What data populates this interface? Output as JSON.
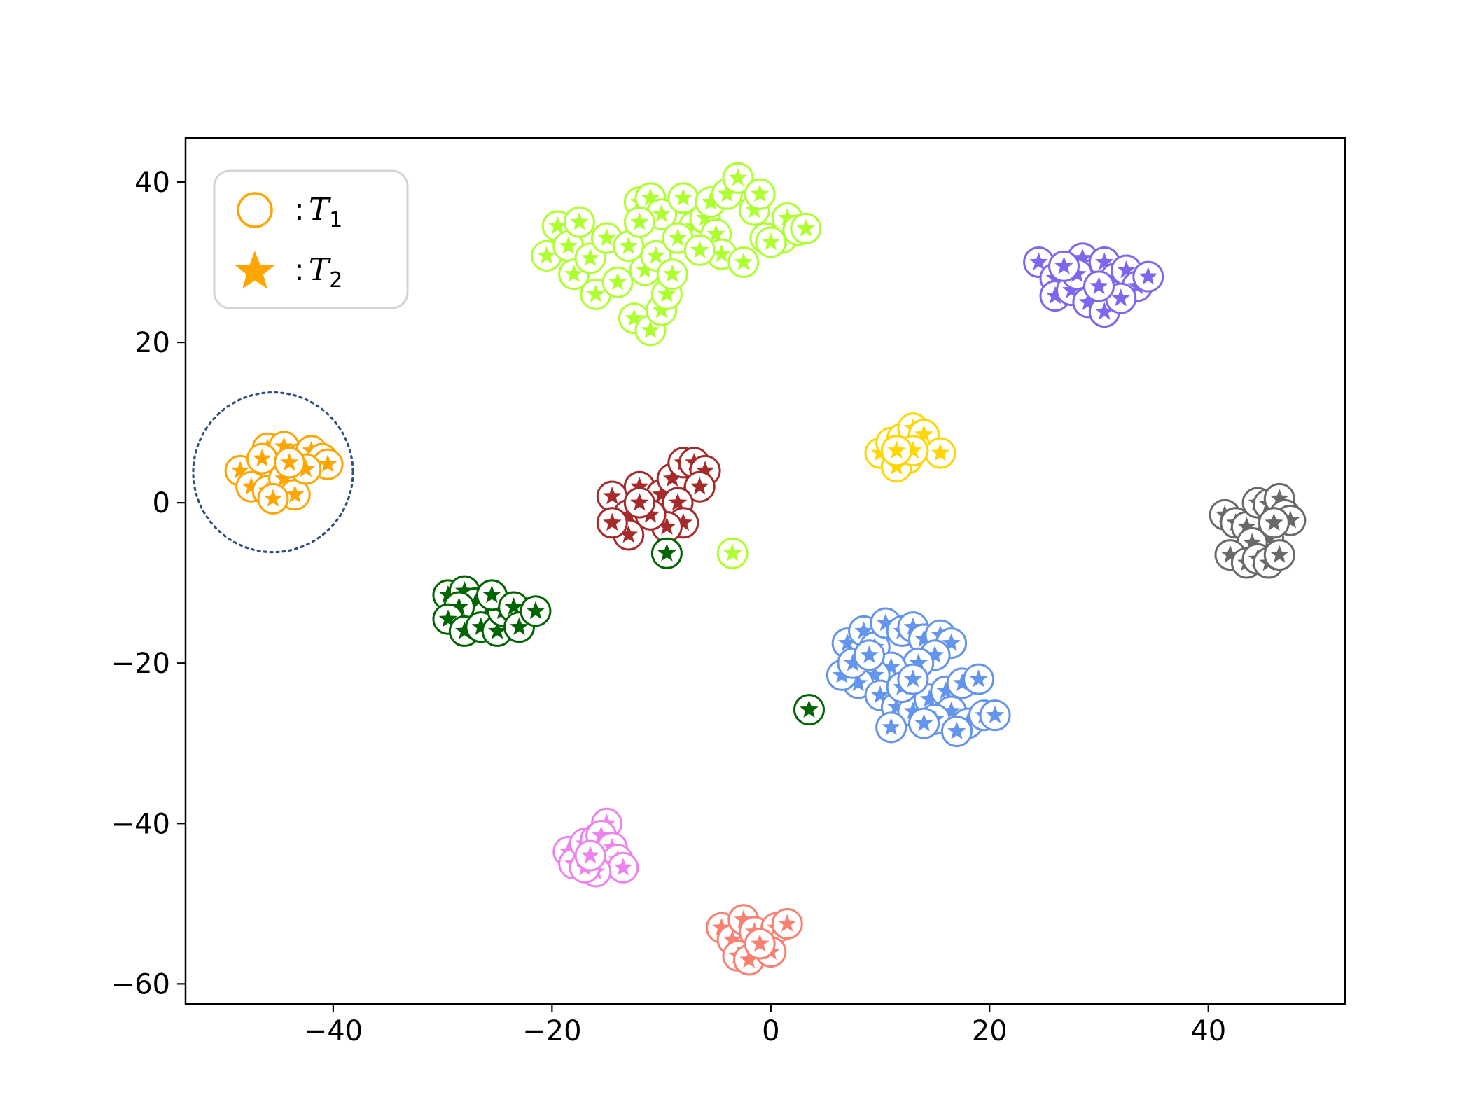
{
  "chart_data": {
    "type": "scatter",
    "title": "",
    "xlabel": "",
    "ylabel": "",
    "xlim": [
      -53.5,
      52.5
    ],
    "ylim": [
      -62.5,
      45.5
    ],
    "x_ticks": [
      -40,
      -20,
      0,
      20,
      40
    ],
    "y_ticks": [
      -60,
      -40,
      -20,
      0,
      20,
      40
    ],
    "x_tick_labels": [
      "−40",
      "−20",
      "0",
      "20",
      "40"
    ],
    "y_tick_labels": [
      "−60",
      "−40",
      "−20",
      "0",
      "20",
      "40"
    ],
    "grid": false,
    "legend": {
      "placement": "top-left",
      "entries": [
        {
          "marker": "circle-open",
          "prefix": ":",
          "symbol": "T",
          "subscript": "1"
        },
        {
          "marker": "star-filled",
          "prefix": ":",
          "symbol": "T",
          "subscript": "2"
        }
      ],
      "marker_color": "#FFA500"
    },
    "highlight": {
      "shape": "dotted-circle",
      "center": [
        -45.5,
        3.8
      ],
      "radius": 7.3,
      "color": "#2F4F7F"
    },
    "clusters": [
      {
        "color": "#FFA500",
        "points": [
          [
            -47,
            4.2
          ],
          [
            -46,
            6.8
          ],
          [
            -44.5,
            7
          ],
          [
            -43,
            5.5
          ],
          [
            -42,
            6.5
          ],
          [
            -41,
            5.5
          ],
          [
            -40.5,
            4.8
          ],
          [
            -48.5,
            4
          ],
          [
            -47.5,
            2
          ],
          [
            -46,
            1.5
          ],
          [
            -44.5,
            3
          ],
          [
            -43.5,
            1
          ],
          [
            -45.5,
            0.5
          ],
          [
            -42.5,
            4.2
          ],
          [
            -46.5,
            5.5
          ],
          [
            -44,
            5
          ]
        ]
      },
      {
        "color": "#ADFF2F",
        "points": [
          [
            -20.5,
            30.8
          ],
          [
            -19.5,
            34.5
          ],
          [
            -18.5,
            32
          ],
          [
            -17.5,
            35
          ],
          [
            -18,
            28.5
          ],
          [
            -16.5,
            30.5
          ],
          [
            -15,
            33
          ],
          [
            -16,
            26
          ],
          [
            -14,
            27.5
          ],
          [
            -13,
            32
          ],
          [
            -12,
            37.5
          ],
          [
            -11,
            38
          ],
          [
            -10,
            36
          ],
          [
            -11.5,
            29
          ],
          [
            -10.5,
            30.8
          ],
          [
            -12.5,
            23
          ],
          [
            -11,
            21.5
          ],
          [
            -10,
            24
          ],
          [
            -9.5,
            26
          ],
          [
            -9,
            28.5
          ],
          [
            -8,
            38
          ],
          [
            -7,
            34.5
          ],
          [
            -6,
            35.5
          ],
          [
            -5,
            33.5
          ],
          [
            -5.5,
            37.5
          ],
          [
            -4,
            38.5
          ],
          [
            -3,
            40.5
          ],
          [
            -4.5,
            31
          ],
          [
            -2.5,
            30
          ],
          [
            -1.5,
            36.5
          ],
          [
            -0.5,
            33
          ],
          [
            1,
            33
          ],
          [
            1.5,
            35.5
          ],
          [
            -1,
            38.5
          ],
          [
            2.5,
            34
          ],
          [
            -12,
            35
          ],
          [
            -8.5,
            33
          ],
          [
            -6.5,
            31.5
          ],
          [
            3.2,
            34.2
          ],
          [
            0,
            32.5
          ]
        ]
      },
      {
        "color": "#7B68EE",
        "points": [
          [
            24.5,
            30
          ],
          [
            26,
            28
          ],
          [
            27.5,
            27
          ],
          [
            28.5,
            30.5
          ],
          [
            29.5,
            28.5
          ],
          [
            30.5,
            30
          ],
          [
            31.5,
            28
          ],
          [
            32.5,
            29
          ],
          [
            33.5,
            27
          ],
          [
            34.5,
            28.2
          ],
          [
            26,
            25.8
          ],
          [
            27.5,
            26.5
          ],
          [
            29,
            25
          ],
          [
            30.5,
            23.8
          ],
          [
            32,
            25.5
          ],
          [
            28,
            28.5
          ],
          [
            30,
            27
          ],
          [
            26.8,
            29.5
          ]
        ]
      },
      {
        "color": "#FFD700",
        "points": [
          [
            10,
            6.2
          ],
          [
            11,
            7.5
          ],
          [
            12,
            8
          ],
          [
            13,
            9.3
          ],
          [
            14,
            8.5
          ],
          [
            12.5,
            5.5
          ],
          [
            11.5,
            4.5
          ],
          [
            15.5,
            6.2
          ],
          [
            13,
            6.5
          ],
          [
            11.5,
            6.5
          ]
        ]
      },
      {
        "color": "#A52A2A",
        "points": [
          [
            -14.5,
            0.8
          ],
          [
            -13,
            -1.5
          ],
          [
            -12,
            2
          ],
          [
            -11,
            -0.5
          ],
          [
            -10,
            1
          ],
          [
            -9,
            3
          ],
          [
            -8,
            5
          ],
          [
            -7,
            5
          ],
          [
            -6,
            4
          ],
          [
            -6.5,
            2
          ],
          [
            -8.5,
            0
          ],
          [
            -8,
            -2.5
          ],
          [
            -9.5,
            -3
          ],
          [
            -11,
            -1.5
          ],
          [
            -13,
            -4
          ],
          [
            -14.5,
            -2.5
          ],
          [
            -12,
            0
          ]
        ]
      },
      {
        "color": "#006400",
        "points": [
          [
            -29.5,
            -11.5
          ],
          [
            -28,
            -11
          ],
          [
            -27,
            -12.5
          ],
          [
            -26,
            -14
          ],
          [
            -28.5,
            -13
          ],
          [
            -29.5,
            -14.5
          ],
          [
            -28,
            -16
          ],
          [
            -26.5,
            -15.5
          ],
          [
            -25,
            -16
          ],
          [
            -24.5,
            -13.5
          ],
          [
            -25.5,
            -11.5
          ],
          [
            -23.5,
            -13
          ],
          [
            -23,
            -15.5
          ],
          [
            -21.5,
            -13.5
          ],
          [
            -9.5,
            -6.3
          ],
          [
            3.5,
            -25.8
          ]
        ]
      },
      {
        "color": "#ADFF2F",
        "points": [
          [
            -3.5,
            -6.3
          ]
        ]
      },
      {
        "color": "#6495ED",
        "points": [
          [
            7,
            -17.5
          ],
          [
            8.5,
            -16
          ],
          [
            9.5,
            -18
          ],
          [
            10.5,
            -15
          ],
          [
            12,
            -16
          ],
          [
            13,
            -15.5
          ],
          [
            14,
            -17
          ],
          [
            15.5,
            -16.5
          ],
          [
            16.5,
            -17.5
          ],
          [
            15,
            -19
          ],
          [
            13.5,
            -20
          ],
          [
            11,
            -20.5
          ],
          [
            9.5,
            -21.5
          ],
          [
            8,
            -22.5
          ],
          [
            6.5,
            -21.5
          ],
          [
            7.5,
            -20
          ],
          [
            10,
            -24
          ],
          [
            11.5,
            -25.5
          ],
          [
            13,
            -26
          ],
          [
            14.5,
            -24.5
          ],
          [
            16,
            -23.5
          ],
          [
            17.5,
            -22.5
          ],
          [
            19,
            -22
          ],
          [
            16.5,
            -26
          ],
          [
            18,
            -27.5
          ],
          [
            19.5,
            -26.5
          ],
          [
            20.5,
            -26.5
          ],
          [
            15,
            -27
          ],
          [
            17,
            -28.5
          ],
          [
            14,
            -27.5
          ],
          [
            11,
            -28
          ],
          [
            12,
            -23
          ],
          [
            9,
            -19
          ],
          [
            13,
            -22
          ]
        ]
      },
      {
        "color": "#696969",
        "points": [
          [
            41.5,
            -1.5
          ],
          [
            42.5,
            -2.5
          ],
          [
            43.5,
            -3
          ],
          [
            44.5,
            0
          ],
          [
            45.5,
            -0.2
          ],
          [
            46.5,
            0.5
          ],
          [
            47,
            -1.5
          ],
          [
            47.5,
            -2.2
          ],
          [
            45.5,
            -4.5
          ],
          [
            44,
            -5
          ],
          [
            42,
            -6.5
          ],
          [
            43.5,
            -7.5
          ],
          [
            44.5,
            -7
          ],
          [
            45.5,
            -7.5
          ],
          [
            46.5,
            -6.5
          ],
          [
            46,
            -2.5
          ]
        ]
      },
      {
        "color": "#EE82EE",
        "points": [
          [
            -18.5,
            -43.5
          ],
          [
            -18,
            -45
          ],
          [
            -17,
            -42.5
          ],
          [
            -16,
            -42
          ],
          [
            -15,
            -40
          ],
          [
            -15.5,
            -41.5
          ],
          [
            -14.5,
            -43
          ],
          [
            -14,
            -44.5
          ],
          [
            -13.5,
            -45.5
          ],
          [
            -16,
            -46
          ],
          [
            -17,
            -45.5
          ],
          [
            -16.5,
            -44
          ]
        ]
      },
      {
        "color": "#FA8072",
        "points": [
          [
            -4.5,
            -53
          ],
          [
            -3.5,
            -54.5
          ],
          [
            -2.5,
            -52
          ],
          [
            -1.5,
            -53.5
          ],
          [
            -0.5,
            -55
          ],
          [
            0.5,
            -53
          ],
          [
            1.5,
            -52.5
          ],
          [
            -3,
            -56.5
          ],
          [
            -2,
            -57
          ],
          [
            0,
            -56
          ],
          [
            -1,
            -55
          ]
        ]
      }
    ]
  }
}
